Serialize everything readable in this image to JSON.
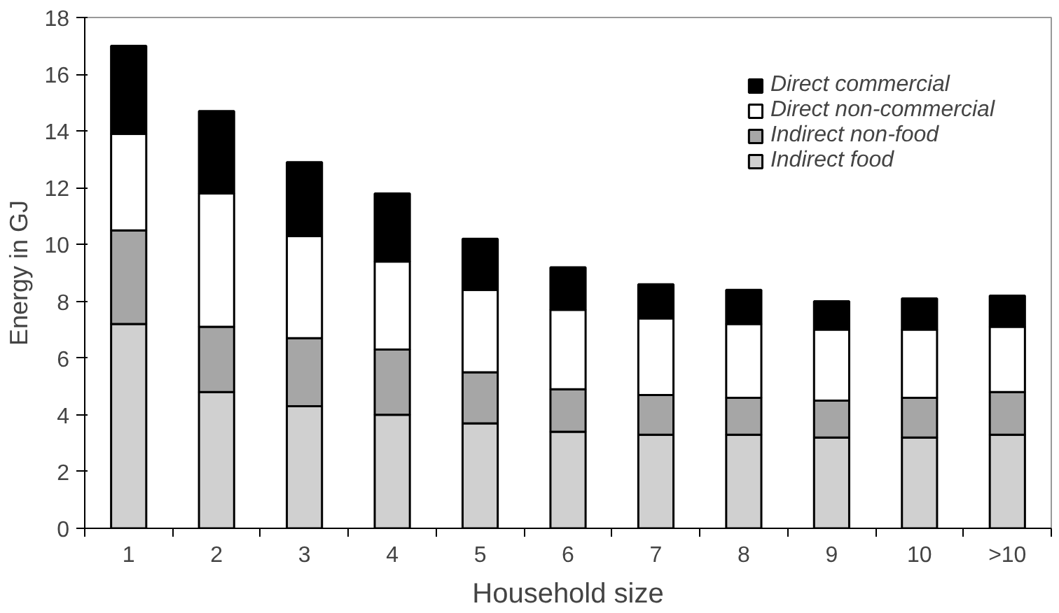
{
  "chart_data": {
    "type": "bar",
    "stacked": true,
    "xlabel": "Household size",
    "ylabel": "Energy in GJ",
    "categories": [
      "1",
      "2",
      "3",
      "4",
      "5",
      "6",
      "7",
      "8",
      "9",
      "10",
      ">10"
    ],
    "series": [
      {
        "name": "Indirect food",
        "color": "#d0d0d0",
        "values": [
          7.2,
          4.8,
          4.3,
          4.0,
          3.7,
          3.4,
          3.3,
          3.3,
          3.2,
          3.2,
          3.3
        ]
      },
      {
        "name": "Indirect non-food",
        "color": "#a6a6a6",
        "values": [
          3.3,
          2.3,
          2.4,
          2.3,
          1.8,
          1.5,
          1.4,
          1.3,
          1.3,
          1.4,
          1.5
        ]
      },
      {
        "name": "Direct non-commercial",
        "color": "#ffffff",
        "values": [
          3.4,
          4.7,
          3.6,
          3.1,
          2.9,
          2.8,
          2.7,
          2.6,
          2.5,
          2.4,
          2.3
        ]
      },
      {
        "name": "Direct commercial",
        "color": "#000000",
        "values": [
          3.1,
          2.9,
          2.6,
          2.4,
          1.8,
          1.5,
          1.2,
          1.2,
          1.0,
          1.1,
          1.1
        ]
      }
    ],
    "ylim": [
      0,
      18
    ],
    "yticks": [
      0,
      2,
      4,
      6,
      8,
      10,
      12,
      14,
      16,
      18
    ],
    "grid": false,
    "legend": "top right"
  }
}
